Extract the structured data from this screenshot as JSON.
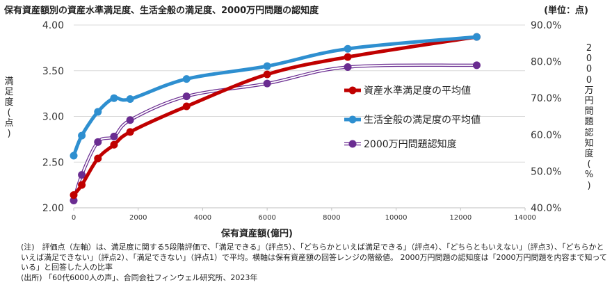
{
  "title": "保有資産額別の資産水準満足度、生活全般の満足度、2000万円問題の認知度",
  "unit_label": "(単位：点)",
  "y_left_label": "満足度(点)",
  "y_right_label": "2000万円問題認知度(%)",
  "x_label": "保有資産額(億円)",
  "notes": [
    "(注)　評価点（左軸）は、満足度に関する5段階評価で、「満足できる」（評点5）、「どちらかといえば満足できる」（評点4）、「どちらともいえない」（評点3）、「どちらかといえば満足できない」（評点2）、「満足できない」（評点1）で平均。横軸は保有資産額の回答レンジの階級値。 2000万円問題の認知度は「2000万円問題を内容まで知っている」と回答した人の比率",
    "(出所) 「60代6000人の声」、合同会社フィンウェル研究所、2023年"
  ],
  "colors": {
    "asset": "#c00000",
    "life": "#2e8fd0",
    "awareness": "#6a2c91",
    "grid": "#d9d9d9",
    "axis": "#bfbfbf"
  },
  "chart_data": {
    "type": "line",
    "x_ticks": [
      "0",
      "2000",
      "4000",
      "6000",
      "8000",
      "10000",
      "12000",
      "14000"
    ],
    "y_left_ticks": [
      "2.00",
      "2.50",
      "3.00",
      "3.50",
      "4.00"
    ],
    "y_right_ticks": [
      "40.0%",
      "50.0%",
      "60.0%",
      "70.0%",
      "80.0%",
      "90.0%"
    ],
    "xlim": [
      0,
      14000
    ],
    "ylim_left": [
      2.0,
      4.0
    ],
    "ylim_right": [
      40,
      90
    ],
    "grid": "horizontal",
    "legend_position": "right-center",
    "x": [
      0,
      250,
      750,
      1250,
      1750,
      3500,
      6000,
      8500,
      12500
    ],
    "series": [
      {
        "name": "資産水準満足度の平均値",
        "axis": "left",
        "color_key": "asset",
        "values": [
          2.14,
          2.25,
          2.54,
          2.69,
          2.83,
          3.11,
          3.46,
          3.65,
          3.87
        ]
      },
      {
        "name": "生活全般の満足度の平均値",
        "axis": "left",
        "color_key": "life",
        "values": [
          2.57,
          2.79,
          3.05,
          3.2,
          3.19,
          3.41,
          3.55,
          3.74,
          3.87
        ]
      },
      {
        "name": "2000万円問題認知度",
        "axis": "right",
        "color_key": "awareness",
        "values": [
          42.0,
          49.0,
          58.0,
          59.5,
          64.0,
          70.5,
          74.0,
          78.5,
          79.0
        ]
      }
    ]
  }
}
